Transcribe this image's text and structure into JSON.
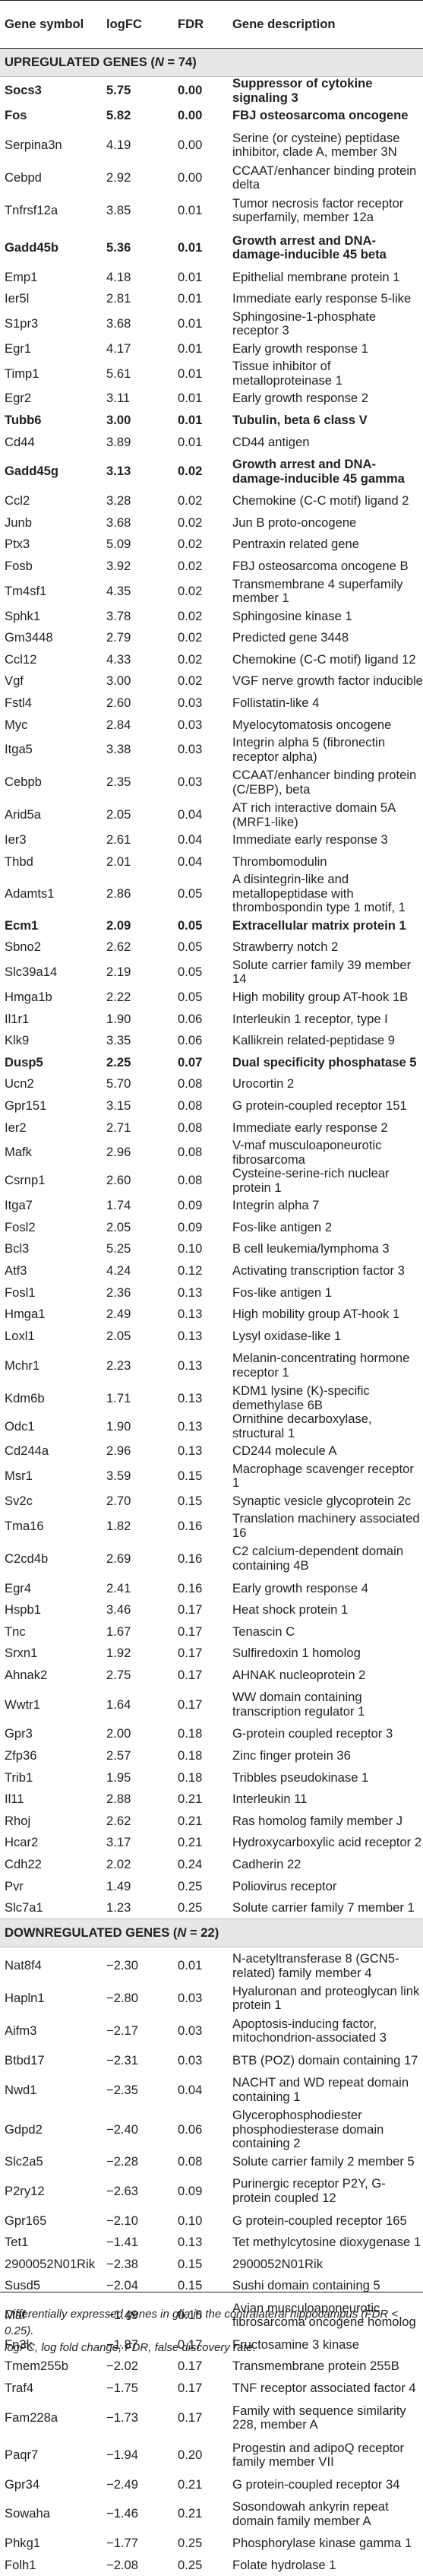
{
  "columns": {
    "gene_symbol": "Gene symbol",
    "logfc": "logFC",
    "fdr": "FDR",
    "description": "Gene description"
  },
  "sections": [
    {
      "prefix": "UPREGULATED GENES (",
      "n_label": "N",
      "suffix": " = 74)",
      "rows": [
        {
          "symbol": "Socs3",
          "logfc": "5.75",
          "fdr": "0.00",
          "desc": "Suppressor of cytokine signaling 3",
          "bold": true
        },
        {
          "symbol": "Fos",
          "logfc": "5.82",
          "fdr": "0.00",
          "desc": "FBJ osteosarcoma oncogene",
          "bold": true
        },
        {
          "symbol": "Serpina3n",
          "logfc": "4.19",
          "fdr": "0.00",
          "desc": "Serine (or cysteine) peptidase inhibitor, clade A, member 3N",
          "tall": true
        },
        {
          "symbol": "Cebpd",
          "logfc": "2.92",
          "fdr": "0.00",
          "desc": "CCAAT/enhancer binding protein delta"
        },
        {
          "symbol": "Tnfrsf12a",
          "logfc": "3.85",
          "fdr": "0.01",
          "desc": "Tumor necrosis factor receptor superfamily, member 12a",
          "tall": true
        },
        {
          "symbol": "Gadd45b",
          "logfc": "5.36",
          "fdr": "0.01",
          "desc": "Growth arrest and DNA-damage-inducible 45 beta",
          "bold": true,
          "tall": true
        },
        {
          "symbol": "Emp1",
          "logfc": "4.18",
          "fdr": "0.01",
          "desc": "Epithelial membrane protein 1"
        },
        {
          "symbol": "Ier5l",
          "logfc": "2.81",
          "fdr": "0.01",
          "desc": "Immediate early response 5-like"
        },
        {
          "symbol": "S1pr3",
          "logfc": "3.68",
          "fdr": "0.01",
          "desc": "Sphingosine-1-phosphate receptor 3"
        },
        {
          "symbol": "Egr1",
          "logfc": "4.17",
          "fdr": "0.01",
          "desc": "Early growth response 1"
        },
        {
          "symbol": "Timp1",
          "logfc": "5.61",
          "fdr": "0.01",
          "desc": "Tissue inhibitor of metalloproteinase 1"
        },
        {
          "symbol": "Egr2",
          "logfc": "3.11",
          "fdr": "0.01",
          "desc": "Early growth response 2"
        },
        {
          "symbol": "Tubb6",
          "logfc": "3.00",
          "fdr": "0.01",
          "desc": "Tubulin, beta 6 class V",
          "bold": true
        },
        {
          "symbol": "Cd44",
          "logfc": "3.89",
          "fdr": "0.01",
          "desc": "CD44 antigen"
        },
        {
          "symbol": "Gadd45g",
          "logfc": "3.13",
          "fdr": "0.02",
          "desc": "Growth arrest and DNA-damage-inducible 45 gamma",
          "bold": true,
          "tall": true
        },
        {
          "symbol": "Ccl2",
          "logfc": "3.28",
          "fdr": "0.02",
          "desc": "Chemokine (C-C motif) ligand 2"
        },
        {
          "symbol": "Junb",
          "logfc": "3.68",
          "fdr": "0.02",
          "desc": "Jun B proto-oncogene"
        },
        {
          "symbol": "Ptx3",
          "logfc": "5.09",
          "fdr": "0.02",
          "desc": "Pentraxin related gene"
        },
        {
          "symbol": "Fosb",
          "logfc": "3.92",
          "fdr": "0.02",
          "desc": "FBJ osteosarcoma oncogene B"
        },
        {
          "symbol": "Tm4sf1",
          "logfc": "4.35",
          "fdr": "0.02",
          "desc": "Transmembrane 4 superfamily member 1"
        },
        {
          "symbol": "Sphk1",
          "logfc": "3.78",
          "fdr": "0.02",
          "desc": "Sphingosine kinase 1"
        },
        {
          "symbol": "Gm3448",
          "logfc": "2.79",
          "fdr": "0.02",
          "desc": "Predicted gene 3448"
        },
        {
          "symbol": "Ccl12",
          "logfc": "4.33",
          "fdr": "0.02",
          "desc": "Chemokine (C-C motif) ligand 12"
        },
        {
          "symbol": "Vgf",
          "logfc": "3.00",
          "fdr": "0.02",
          "desc": "VGF nerve growth factor inducible"
        },
        {
          "symbol": "Fstl4",
          "logfc": "2.60",
          "fdr": "0.03",
          "desc": "Follistatin-like 4"
        },
        {
          "symbol": "Myc",
          "logfc": "2.84",
          "fdr": "0.03",
          "desc": "Myelocytomatosis oncogene"
        },
        {
          "symbol": "Itga5",
          "logfc": "3.38",
          "fdr": "0.03",
          "desc": "Integrin alpha 5 (fibronectin receptor alpha)"
        },
        {
          "symbol": "Cebpb",
          "logfc": "2.35",
          "fdr": "0.03",
          "desc": "CCAAT/enhancer binding protein (C/EBP), beta",
          "tall": true
        },
        {
          "symbol": "Arid5a",
          "logfc": "2.05",
          "fdr": "0.04",
          "desc": "AT rich interactive domain 5A (MRF1-like)"
        },
        {
          "symbol": "Ier3",
          "logfc": "2.61",
          "fdr": "0.04",
          "desc": "Immediate early response 3"
        },
        {
          "symbol": "Thbd",
          "logfc": "2.01",
          "fdr": "0.04",
          "desc": "Thrombomodulin"
        },
        {
          "symbol": "Adamts1",
          "logfc": "2.86",
          "fdr": "0.05",
          "desc": "A disintegrin-like and metallopeptidase with thrombospondin type 1 motif, 1",
          "tall": true
        },
        {
          "symbol": "Ecm1",
          "logfc": "2.09",
          "fdr": "0.05",
          "desc": "Extracellular matrix protein 1",
          "bold": true
        },
        {
          "symbol": "Sbno2",
          "logfc": "2.62",
          "fdr": "0.05",
          "desc": "Strawberry notch 2"
        },
        {
          "symbol": "Slc39a14",
          "logfc": "2.19",
          "fdr": "0.05",
          "desc": "Solute carrier family 39 member 14"
        },
        {
          "symbol": "Hmga1b",
          "logfc": "2.22",
          "fdr": "0.05",
          "desc": "High mobility group AT-hook 1B"
        },
        {
          "symbol": "Il1r1",
          "logfc": "1.90",
          "fdr": "0.06",
          "desc": "Interleukin 1 receptor, type I"
        },
        {
          "symbol": "Klk9",
          "logfc": "3.35",
          "fdr": "0.06",
          "desc": "Kallikrein related-peptidase 9"
        },
        {
          "symbol": "Dusp5",
          "logfc": "2.25",
          "fdr": "0.07",
          "desc": "Dual specificity phosphatase 5",
          "bold": true
        },
        {
          "symbol": "Ucn2",
          "logfc": "5.70",
          "fdr": "0.08",
          "desc": "Urocortin 2"
        },
        {
          "symbol": "Gpr151",
          "logfc": "3.15",
          "fdr": "0.08",
          "desc": "G protein-coupled receptor 151"
        },
        {
          "symbol": "Ier2",
          "logfc": "2.71",
          "fdr": "0.08",
          "desc": "Immediate early response 2"
        },
        {
          "symbol": "Mafk",
          "logfc": "2.96",
          "fdr": "0.08",
          "desc": "V-maf musculoaponeurotic fibrosarcoma"
        },
        {
          "symbol": "Csrnp1",
          "logfc": "2.60",
          "fdr": "0.08",
          "desc": "Cysteine-serine-rich nuclear protein 1"
        },
        {
          "symbol": "Itga7",
          "logfc": "1.74",
          "fdr": "0.09",
          "desc": "Integrin alpha 7"
        },
        {
          "symbol": "Fosl2",
          "logfc": "2.05",
          "fdr": "0.09",
          "desc": "Fos-like antigen 2"
        },
        {
          "symbol": "Bcl3",
          "logfc": "5.25",
          "fdr": "0.10",
          "desc": "B cell leukemia/lymphoma 3"
        },
        {
          "symbol": "Atf3",
          "logfc": "4.24",
          "fdr": "0.12",
          "desc": "Activating transcription factor 3"
        },
        {
          "symbol": "Fosl1",
          "logfc": "2.36",
          "fdr": "0.13",
          "desc": "Fos-like antigen 1"
        },
        {
          "symbol": "Hmga1",
          "logfc": "2.49",
          "fdr": "0.13",
          "desc": "High mobility group AT-hook 1"
        },
        {
          "symbol": "Loxl1",
          "logfc": "2.05",
          "fdr": "0.13",
          "desc": "Lysyl oxidase-like 1"
        },
        {
          "symbol": "Mchr1",
          "logfc": "2.23",
          "fdr": "0.13",
          "desc": "Melanin-concentrating hormone receptor 1",
          "tall": true
        },
        {
          "symbol": "Kdm6b",
          "logfc": "1.71",
          "fdr": "0.13",
          "desc": "KDM1 lysine (K)-specific demethylase 6B"
        },
        {
          "symbol": "Odc1",
          "logfc": "1.90",
          "fdr": "0.13",
          "desc": "Ornithine decarboxylase, structural 1"
        },
        {
          "symbol": "Cd244a",
          "logfc": "2.96",
          "fdr": "0.13",
          "desc": "CD244 molecule A"
        },
        {
          "symbol": "Msr1",
          "logfc": "3.59",
          "fdr": "0.15",
          "desc": "Macrophage scavenger receptor 1"
        },
        {
          "symbol": "Sv2c",
          "logfc": "2.70",
          "fdr": "0.15",
          "desc": "Synaptic vesicle glycoprotein 2c"
        },
        {
          "symbol": "Tma16",
          "logfc": "1.82",
          "fdr": "0.16",
          "desc": "Translation machinery associated 16"
        },
        {
          "symbol": "C2cd4b",
          "logfc": "2.69",
          "fdr": "0.16",
          "desc": "C2 calcium-dependent domain containing 4B",
          "tall": true
        },
        {
          "symbol": "Egr4",
          "logfc": "2.41",
          "fdr": "0.16",
          "desc": "Early growth response 4"
        },
        {
          "symbol": "Hspb1",
          "logfc": "3.46",
          "fdr": "0.17",
          "desc": "Heat shock protein 1"
        },
        {
          "symbol": "Tnc",
          "logfc": "1.67",
          "fdr": "0.17",
          "desc": "Tenascin C"
        },
        {
          "symbol": "Srxn1",
          "logfc": "1.92",
          "fdr": "0.17",
          "desc": "Sulfiredoxin 1 homolog"
        },
        {
          "symbol": "Ahnak2",
          "logfc": "2.75",
          "fdr": "0.17",
          "desc": "AHNAK nucleoprotein 2"
        },
        {
          "symbol": "Wwtr1",
          "logfc": "1.64",
          "fdr": "0.17",
          "desc": "WW domain containing transcription regulator 1",
          "tall": true
        },
        {
          "symbol": "Gpr3",
          "logfc": "2.00",
          "fdr": "0.18",
          "desc": "G-protein coupled receptor 3"
        },
        {
          "symbol": "Zfp36",
          "logfc": "2.57",
          "fdr": "0.18",
          "desc": "Zinc finger protein 36"
        },
        {
          "symbol": "Trib1",
          "logfc": "1.95",
          "fdr": "0.18",
          "desc": "Tribbles pseudokinase 1"
        },
        {
          "symbol": "Il11",
          "logfc": "2.88",
          "fdr": "0.21",
          "desc": "Interleukin 11"
        },
        {
          "symbol": "Rhoj",
          "logfc": "2.62",
          "fdr": "0.21",
          "desc": "Ras homolog family member J"
        },
        {
          "symbol": "Hcar2",
          "logfc": "3.17",
          "fdr": "0.21",
          "desc": "Hydroxycarboxylic acid receptor 2"
        },
        {
          "symbol": "Cdh22",
          "logfc": "2.02",
          "fdr": "0.24",
          "desc": "Cadherin 22"
        },
        {
          "symbol": "Pvr",
          "logfc": "1.49",
          "fdr": "0.25",
          "desc": "Poliovirus receptor"
        },
        {
          "symbol": "Slc7a1",
          "logfc": "1.23",
          "fdr": "0.25",
          "desc": "Solute carrier family 7 member 1"
        }
      ]
    },
    {
      "prefix": "DOWNREGULATED GENES (",
      "n_label": "N",
      "suffix": " = 22)",
      "rows": [
        {
          "symbol": "Nat8f4",
          "logfc": "−2.30",
          "fdr": "0.01",
          "desc": "N-acetyltransferase 8 (GCN5-related) family member 4",
          "tall": true
        },
        {
          "symbol": "Hapln1",
          "logfc": "−2.80",
          "fdr": "0.03",
          "desc": "Hyaluronan and proteoglycan link protein 1"
        },
        {
          "symbol": "Aifm3",
          "logfc": "−2.17",
          "fdr": "0.03",
          "desc": "Apoptosis-inducing factor, mitochondrion-associated 3",
          "tall": true
        },
        {
          "symbol": "Btbd17",
          "logfc": "−2.31",
          "fdr": "0.03",
          "desc": "BTB (POZ) domain containing 17"
        },
        {
          "symbol": "Nwd1",
          "logfc": "−2.35",
          "fdr": "0.04",
          "desc": "NACHT and WD repeat domain containing 1",
          "tall": true
        },
        {
          "symbol": "Gdpd2",
          "logfc": "−2.40",
          "fdr": "0.06",
          "desc": "Glycerophosphodiester phosphodiesterase domain containing 2",
          "tall": true
        },
        {
          "symbol": "Slc2a5",
          "logfc": "−2.28",
          "fdr": "0.08",
          "desc": "Solute carrier family 2 member 5"
        },
        {
          "symbol": "P2ry12",
          "logfc": "−2.63",
          "fdr": "0.09",
          "desc": "Purinergic receptor P2Y, G-protein coupled 12",
          "tall": true
        },
        {
          "symbol": "Gpr165",
          "logfc": "−2.10",
          "fdr": "0.10",
          "desc": "G protein-coupled receptor 165"
        },
        {
          "symbol": "Tet1",
          "logfc": "−1.41",
          "fdr": "0.13",
          "desc": "Tet methylcytosine dioxygenase 1"
        },
        {
          "symbol": "2900052N01Rik",
          "logfc": "−2.38",
          "fdr": "0.15",
          "desc": "2900052N01Rik"
        },
        {
          "symbol": "Susd5",
          "logfc": "−2.04",
          "fdr": "0.15",
          "desc": "Sushi domain containing 5"
        },
        {
          "symbol": "Maf",
          "logfc": "−1.49",
          "fdr": "0.15",
          "desc": "Avian musculoaponeurotic fibrosarcoma oncogene homolog",
          "tall": true
        },
        {
          "symbol": "Fn3k",
          "logfc": "−1.87",
          "fdr": "0.17",
          "desc": "Fructosamine 3 kinase"
        },
        {
          "symbol": "Tmem255b",
          "logfc": "−2.02",
          "fdr": "0.17",
          "desc": "Transmembrane protein 255B"
        },
        {
          "symbol": "Traf4",
          "logfc": "−1.75",
          "fdr": "0.17",
          "desc": "TNF receptor associated factor 4"
        },
        {
          "symbol": "Fam228a",
          "logfc": "−1.73",
          "fdr": "0.17",
          "desc": "Family with sequence similarity 228, member A",
          "tall": true
        },
        {
          "symbol": "Paqr7",
          "logfc": "−1.94",
          "fdr": "0.20",
          "desc": "Progestin and adipoQ receptor family member VII",
          "tall": true
        },
        {
          "symbol": "Gpr34",
          "logfc": "−2.49",
          "fdr": "0.21",
          "desc": "G protein-coupled receptor 34"
        },
        {
          "symbol": "Sowaha",
          "logfc": "−1.46",
          "fdr": "0.21",
          "desc": "Sosondowah ankyrin repeat domain family member A",
          "tall": true
        },
        {
          "symbol": "Phkg1",
          "logfc": "−1.77",
          "fdr": "0.25",
          "desc": "Phosphorylase kinase gamma 1"
        },
        {
          "symbol": "Folh1",
          "logfc": "−2.08",
          "fdr": "0.25",
          "desc": "Folate hydrolase 1"
        }
      ]
    }
  ],
  "footnote": {
    "line1": "Differentially expressed genes in glia in the contralateral hippocampus (FDR < 0.25).",
    "line2": "logFC, log fold change; FDR, false discovery rate."
  }
}
